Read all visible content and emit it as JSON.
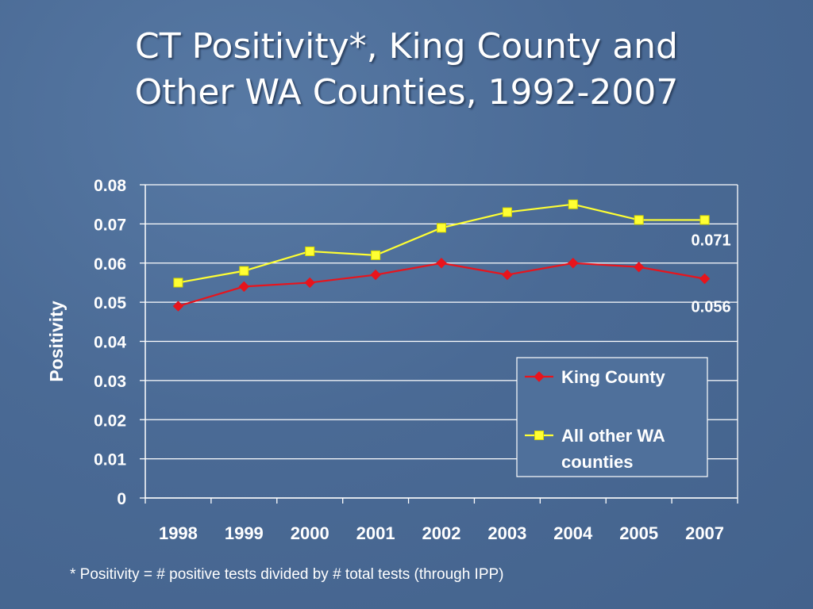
{
  "slide": {
    "title_line1": "CT Positivity*, King County and",
    "title_line2": "Other WA Counties, 1992-2007",
    "footnote": "*  Positivity = # positive tests divided by # total tests (through IPP)"
  },
  "chart_data": {
    "type": "line",
    "title": "",
    "xlabel": "",
    "ylabel": "Positivity",
    "categories": [
      "1998",
      "1999",
      "2000",
      "2001",
      "2002",
      "2003",
      "2004",
      "2005",
      "2007"
    ],
    "ylim": [
      0,
      0.08
    ],
    "yticks": [
      "0",
      "0.01",
      "0.02",
      "0.03",
      "0.04",
      "0.05",
      "0.06",
      "0.07",
      "0.08"
    ],
    "grid": true,
    "legend_position": "bottom-right",
    "series": [
      {
        "name": "King County",
        "color": "#e8141c",
        "marker": "diamond",
        "values": [
          0.049,
          0.054,
          0.055,
          0.057,
          0.06,
          0.057,
          0.06,
          0.059,
          0.056
        ]
      },
      {
        "name": "All other WA counties",
        "legend_lines": [
          "All other WA",
          "counties"
        ],
        "color": "#ffff33",
        "marker": "square",
        "values": [
          0.055,
          0.058,
          0.063,
          0.062,
          0.069,
          0.073,
          0.075,
          0.071,
          0.071
        ]
      }
    ],
    "annotations": [
      {
        "text": "0.071",
        "series": 1,
        "index": 8
      },
      {
        "text": "0.056",
        "series": 0,
        "index": 8
      }
    ]
  }
}
